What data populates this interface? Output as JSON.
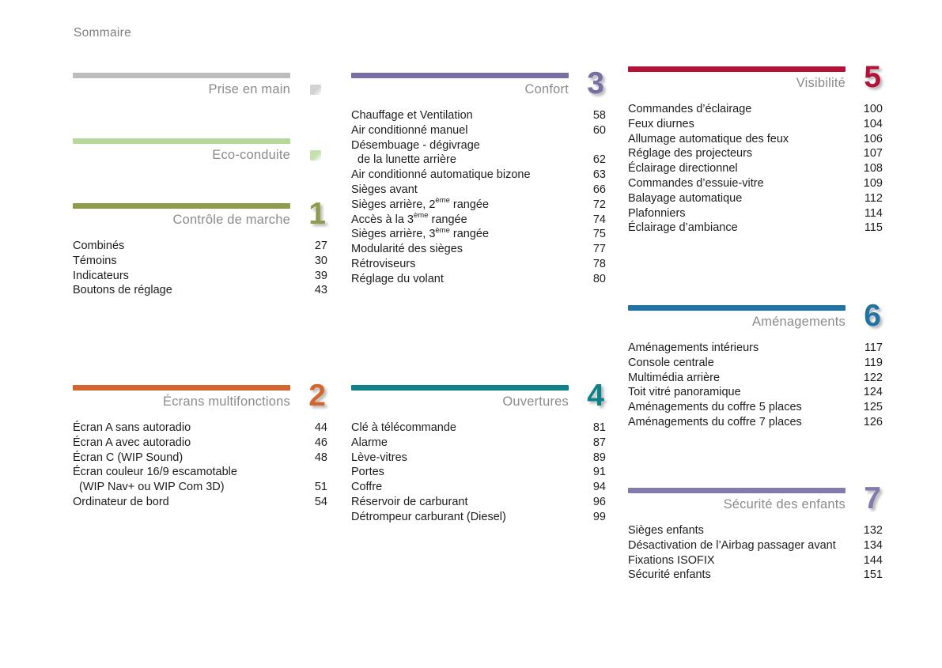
{
  "page": {
    "title": "Sommaire"
  },
  "sections": [
    {
      "id": "prise-en-main",
      "title": "Prise en main",
      "number": "",
      "color": "#bcbcbd",
      "marker": {
        "icon": "faded-tab-icon",
        "color": "#aeaeae"
      },
      "entries": []
    },
    {
      "id": "eco-conduite",
      "title": "Eco-conduite",
      "number": "",
      "color": "#b6d89b",
      "marker": {
        "icon": "faded-tab-icon",
        "color": "#97c870"
      },
      "entries": []
    },
    {
      "id": "controle-de-marche",
      "title": "Contrôle de marche",
      "number": "1",
      "color": "#8f9b4d",
      "entries": [
        {
          "line1": "Combinés",
          "page": "27"
        },
        {
          "line1": "Témoins",
          "page": "30"
        },
        {
          "line1": "Indicateurs",
          "page": "39"
        },
        {
          "line1": "Boutons de réglage",
          "page": "43"
        }
      ]
    },
    {
      "id": "ecrans-multifonctions",
      "title": "Écrans multifonctions",
      "number": "2",
      "color": "#d2662e",
      "entries": [
        {
          "line1": "Écran A sans autoradio",
          "page": "44"
        },
        {
          "line1": "Écran A avec autoradio",
          "page": "46"
        },
        {
          "line1": "Écran C (WIP Sound)",
          "page": "48"
        },
        {
          "line1": "Écran couleur 16/9 escamotable",
          "line2": "(WIP Nav+ ou WIP Com 3D)",
          "page": "51"
        },
        {
          "line1": "Ordinateur de bord",
          "page": "54"
        }
      ]
    },
    {
      "id": "confort",
      "title": "Confort",
      "number": "3",
      "color": "#7a6fa5",
      "entries": [
        {
          "line1": "Chauffage et Ventilation",
          "page": "58"
        },
        {
          "line1": "Air conditionné manuel",
          "page": "60"
        },
        {
          "line1": "Désembuage - dégivrage",
          "line2": "de la lunette arrière",
          "page": "62"
        },
        {
          "line1": "Air conditionné automatique bizone",
          "page": "63"
        },
        {
          "line1": "Sièges avant",
          "page": "66"
        },
        {
          "line1": "Sièges arrière, 2",
          "sup": "ème",
          "post": " rangée",
          "page": "72"
        },
        {
          "line1": "Accès à la 3",
          "sup": "ème",
          "post": " rangée",
          "page": "74"
        },
        {
          "line1": "Sièges arrière, 3",
          "sup": "ème",
          "post": " rangée",
          "page": "75"
        },
        {
          "line1": "Modularité des sièges",
          "page": "77"
        },
        {
          "line1": "Rétroviseurs",
          "page": "78"
        },
        {
          "line1": "Réglage du volant",
          "page": "80"
        }
      ]
    },
    {
      "id": "ouvertures",
      "title": "Ouvertures",
      "number": "4",
      "color": "#0f8289",
      "entries": [
        {
          "line1": "Clé à télécommande",
          "page": "81"
        },
        {
          "line1": "Alarme",
          "page": "87"
        },
        {
          "line1": "Lève-vitres",
          "page": "89"
        },
        {
          "line1": "Portes",
          "page": "91"
        },
        {
          "line1": "Coffre",
          "page": "94"
        },
        {
          "line1": "Réservoir de carburant",
          "page": "96"
        },
        {
          "line1": "Détrompeur carburant (Diesel)",
          "page": "99"
        }
      ]
    },
    {
      "id": "visibilite",
      "title": "Visibilité",
      "number": "5",
      "color": "#b51238",
      "entries": [
        {
          "line1": "Commandes d’éclairage",
          "page": "100"
        },
        {
          "line1": "Feux diurnes",
          "page": "104"
        },
        {
          "line1": "Allumage automatique des feux",
          "page": "106"
        },
        {
          "line1": "Réglage des projecteurs",
          "page": "107"
        },
        {
          "line1": "Éclairage directionnel",
          "page": "108"
        },
        {
          "line1": "Commandes d’essuie-vitre",
          "page": "109"
        },
        {
          "line1": "Balayage automatique",
          "page": "112"
        },
        {
          "line1": "Plafonniers",
          "page": "114"
        },
        {
          "line1": "Éclairage d’ambiance",
          "page": "115"
        }
      ]
    },
    {
      "id": "amenagements",
      "title": "Aménagements",
      "number": "6",
      "color": "#2173a4",
      "entries": [
        {
          "line1": "Aménagements intérieurs",
          "page": "117"
        },
        {
          "line1": "Console centrale",
          "page": "119"
        },
        {
          "line1": "Multimédia arrière",
          "page": "122"
        },
        {
          "line1": "Toit vitré panoramique",
          "page": "124"
        },
        {
          "line1": "Aménagements du coffre 5 places",
          "page": "125"
        },
        {
          "line1": "Aménagements du coffre 7 places",
          "page": "126"
        }
      ]
    },
    {
      "id": "securite-des-enfants",
      "title": "Sécurité des enfants",
      "number": "7",
      "color": "#837aad",
      "entries": [
        {
          "line1": "Sièges enfants",
          "page": "132"
        },
        {
          "line1": "Désactivation de l’Airbag passager avant",
          "page": "134"
        },
        {
          "line1": "Fixations ISOFIX",
          "page": "144"
        },
        {
          "line1": "Sécurité enfants",
          "page": "151"
        }
      ]
    }
  ]
}
